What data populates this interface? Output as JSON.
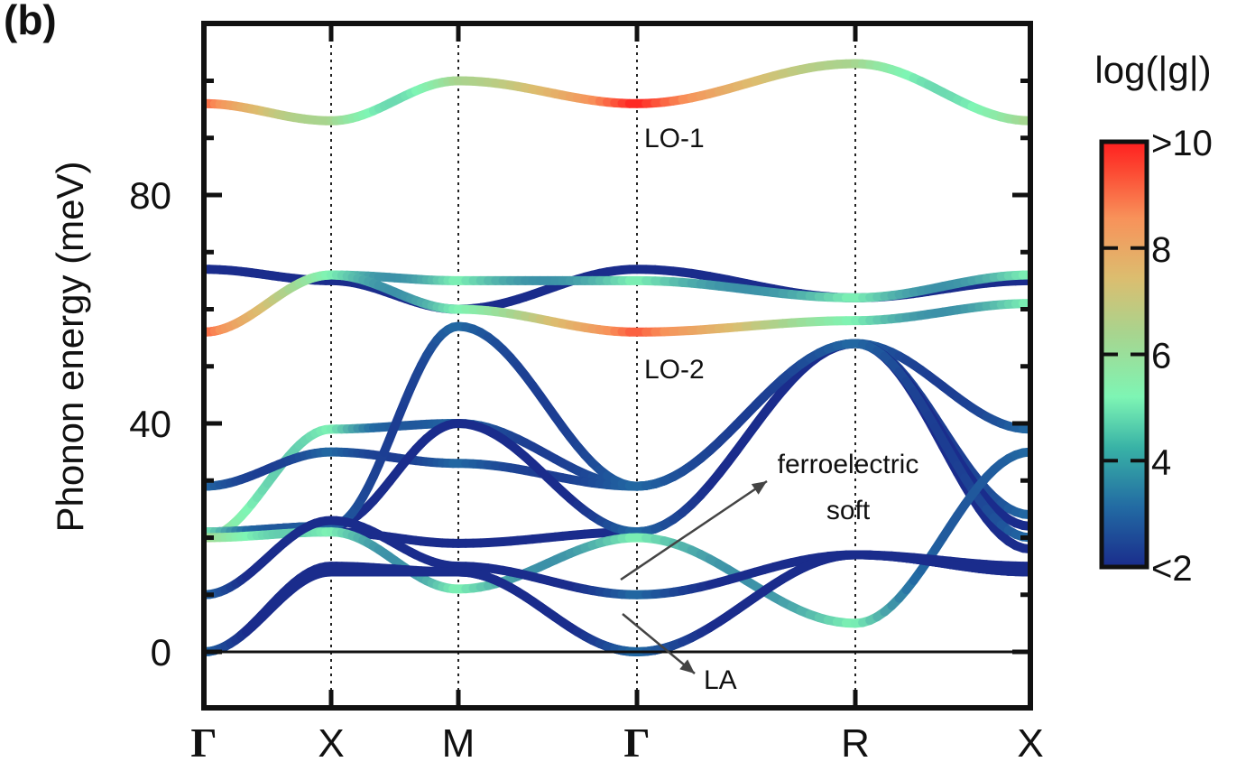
{
  "panel_label": "(b)",
  "chart_data": {
    "type": "line",
    "ylabel": "Phonon energy (meV)",
    "ylim": [
      -10,
      110
    ],
    "yticks": [
      0,
      40,
      80
    ],
    "ytick_labels": [
      "0",
      "40",
      "80"
    ],
    "x_points": [
      "Γ",
      "X",
      "M",
      "Γ",
      "R",
      "X"
    ],
    "grid": "dotted vertical lines at high-symmetry points",
    "colorbar": {
      "title": "log(|g|)",
      "tick_labels": [
        ">10",
        "8",
        "6",
        "4",
        "<2"
      ],
      "tick_values": [
        10,
        8,
        6,
        4,
        2
      ],
      "range": [
        2,
        10
      ],
      "colors": [
        "#1f2f8f",
        "#2a78a8",
        "#43bfa5",
        "#7ef5b4",
        "#9ed38e",
        "#dcbd6f",
        "#f7945a",
        "#fc3a2d",
        "#ff1f1f"
      ]
    },
    "annotations": {
      "lo1": "LO-1",
      "lo2": "LO-2",
      "fe1": "ferroelectric",
      "fe2": "soft",
      "la": "LA"
    },
    "series": [
      {
        "values": [
          96,
          93,
          100,
          96,
          103,
          93
        ],
        "g": [
          9,
          5,
          5,
          10,
          5,
          5
        ]
      },
      {
        "values": [
          67,
          65,
          60,
          67,
          62,
          65
        ],
        "g": [
          2,
          2,
          2,
          2,
          2,
          2
        ]
      },
      {
        "values": [
          56,
          66,
          65,
          65,
          62,
          66
        ],
        "g": [
          9,
          4,
          4,
          4,
          4,
          4
        ]
      },
      {
        "values": [
          56,
          66,
          60,
          56,
          58,
          61
        ],
        "g": [
          9,
          4,
          4,
          9,
          4,
          4
        ]
      },
      {
        "values": [
          20,
          39,
          40,
          29,
          54,
          39
        ],
        "g": [
          5,
          4,
          3,
          3,
          3,
          3
        ]
      },
      {
        "values": [
          29,
          35,
          33,
          29,
          54,
          24
        ],
        "g": [
          3,
          3,
          3,
          3,
          3,
          3
        ]
      },
      {
        "values": [
          21,
          21,
          19,
          21,
          54,
          18
        ],
        "g": [
          2,
          2,
          2,
          2,
          2,
          2
        ]
      },
      {
        "values": [
          21,
          22,
          40,
          21,
          54,
          22
        ],
        "g": [
          3,
          2,
          2,
          3,
          2,
          2
        ]
      },
      {
        "values": [
          21,
          22,
          57,
          29,
          54,
          20
        ],
        "g": [
          4,
          3,
          3,
          3,
          3,
          3
        ]
      },
      {
        "values": [
          20,
          21,
          11,
          20,
          5,
          35
        ],
        "g": [
          5,
          4,
          4,
          4,
          4,
          3
        ]
      },
      {
        "values": [
          10,
          23,
          15,
          10,
          17,
          14
        ],
        "g": [
          3,
          2,
          2,
          3,
          2,
          2
        ]
      },
      {
        "values": [
          0,
          15,
          14,
          0,
          17,
          15
        ],
        "g": [
          3,
          2,
          2,
          3,
          2,
          2
        ]
      },
      {
        "values": [
          0,
          14,
          14,
          0,
          17,
          14
        ],
        "g": [
          3,
          2,
          2,
          3,
          2,
          2
        ]
      }
    ]
  }
}
